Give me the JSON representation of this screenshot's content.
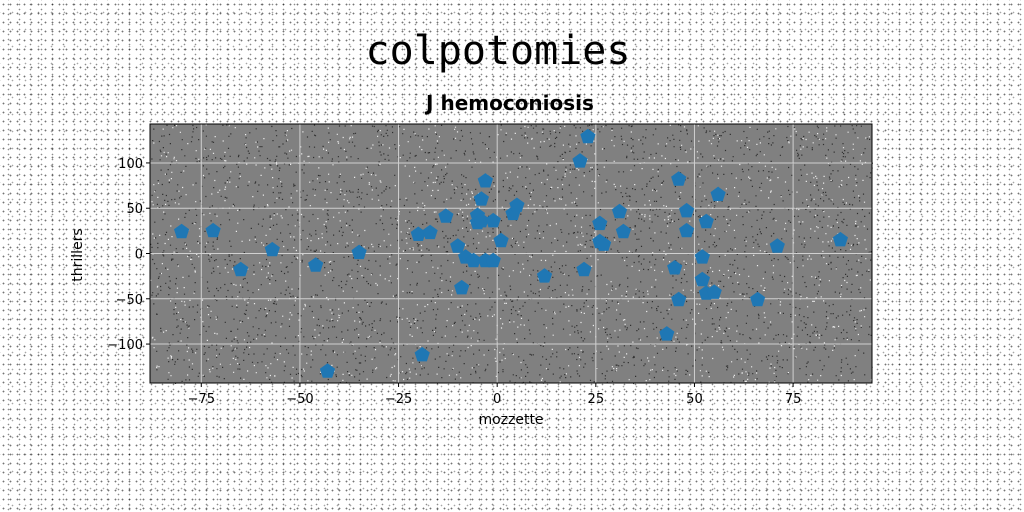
{
  "chart_data": {
    "type": "scatter",
    "suptitle": "colpotomies",
    "title": "J hemoconiosis",
    "xlabel": "mozzette",
    "ylabel": "thrillers",
    "xlim": [
      -88,
      95
    ],
    "ylim": [
      -143,
      143
    ],
    "xticks": [
      -75,
      -50,
      -25,
      0,
      25,
      50,
      75
    ],
    "yticks": [
      -100,
      -50,
      0,
      50,
      100
    ],
    "grid": true,
    "background_color": "#808080",
    "marker_color": "#1f77b4",
    "marker": "pentagon",
    "series": [
      {
        "points": [
          [
            -80,
            24
          ],
          [
            -72,
            25
          ],
          [
            -65,
            -18
          ],
          [
            -57,
            4
          ],
          [
            -46,
            -13
          ],
          [
            -43,
            -130
          ],
          [
            -35,
            1
          ],
          [
            -19,
            -112
          ],
          [
            -20,
            21
          ],
          [
            -17,
            23
          ],
          [
            -13,
            41
          ],
          [
            -10,
            8
          ],
          [
            -9,
            -38
          ],
          [
            -8,
            -4
          ],
          [
            -6,
            -8
          ],
          [
            -5,
            34
          ],
          [
            -5,
            42
          ],
          [
            -4,
            60
          ],
          [
            -4,
            36
          ],
          [
            -3,
            80
          ],
          [
            -3,
            -8
          ],
          [
            -1,
            -8
          ],
          [
            -1,
            36
          ],
          [
            1,
            14
          ],
          [
            4,
            44
          ],
          [
            5,
            53
          ],
          [
            12,
            -25
          ],
          [
            21,
            102
          ],
          [
            22,
            -18
          ],
          [
            23,
            129
          ],
          [
            26,
            33
          ],
          [
            26,
            13
          ],
          [
            27,
            10
          ],
          [
            31,
            46
          ],
          [
            32,
            24
          ],
          [
            43,
            -89
          ],
          [
            45,
            -16
          ],
          [
            46,
            -51
          ],
          [
            46,
            82
          ],
          [
            48,
            47
          ],
          [
            48,
            25
          ],
          [
            52,
            -29
          ],
          [
            52,
            -4
          ],
          [
            53,
            35
          ],
          [
            53,
            -44
          ],
          [
            55,
            -43
          ],
          [
            56,
            65
          ],
          [
            66,
            -51
          ],
          [
            71,
            8
          ],
          [
            87,
            15
          ]
        ]
      }
    ]
  }
}
